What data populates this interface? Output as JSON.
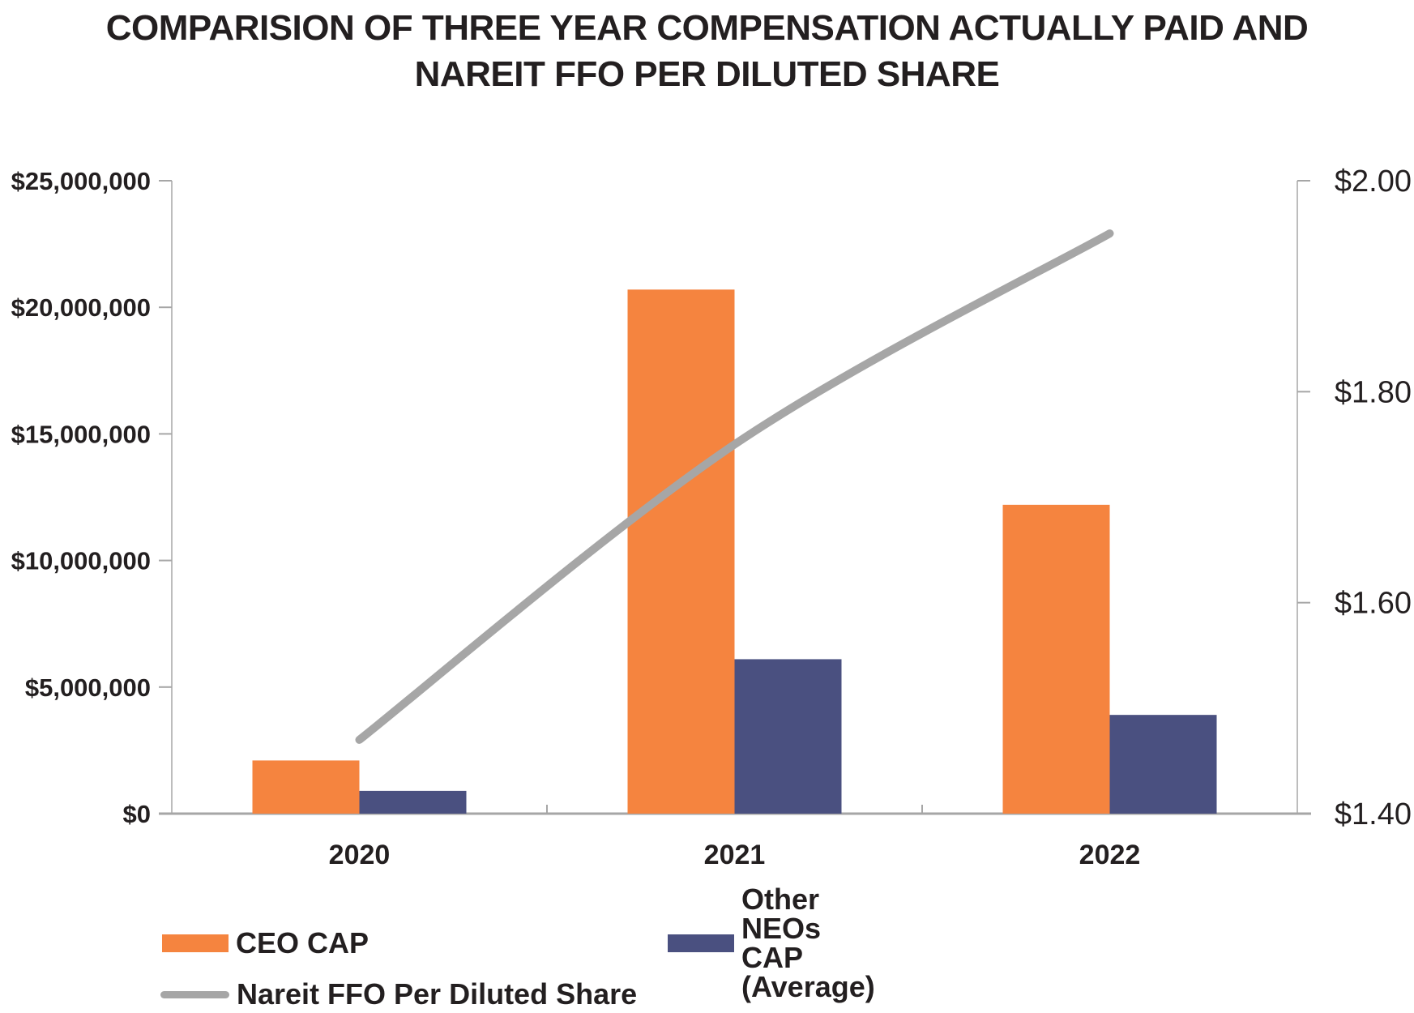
{
  "title": {
    "line1": "COMPARISION OF THREE YEAR COMPENSATION ACTUALLY PAID AND",
    "line2": "NAREIT FFO PER DILUTED SHARE"
  },
  "chart_data": {
    "type": "combo-bar-line",
    "title": "COMPARISION OF THREE YEAR COMPENSATION ACTUALLY PAID AND NAREIT FFO PER DILUTED SHARE",
    "categories": [
      "2020",
      "2021",
      "2022"
    ],
    "series": [
      {
        "name": "CEO CAP",
        "type": "bar",
        "axis": "left",
        "color": "#F5843F",
        "values": [
          2100000,
          20700000,
          12200000
        ]
      },
      {
        "name": "Other NEOs CAP (Average)",
        "type": "bar",
        "axis": "left",
        "color": "#4A5080",
        "values": [
          900000,
          6100000,
          3900000
        ]
      },
      {
        "name": "Nareit FFO Per Diluted Share",
        "type": "line",
        "axis": "right",
        "color": "#A6A6A6",
        "values": [
          1.47,
          1.75,
          1.95
        ]
      }
    ],
    "left_axis": {
      "min": 0,
      "max": 25000000,
      "ticks": [
        0,
        5000000,
        10000000,
        15000000,
        20000000,
        25000000
      ],
      "tick_labels": [
        "$0",
        "$5,000,000",
        "$10,000,000",
        "$15,000,000",
        "$20,000,000",
        "$25,000,000"
      ]
    },
    "right_axis": {
      "min": 1.4,
      "max": 2.0,
      "ticks": [
        1.4,
        1.6,
        1.8,
        2.0
      ],
      "tick_labels": [
        "$1.40",
        "$1.60",
        "$1.80",
        "$2.00"
      ]
    },
    "gridlines": false,
    "legend_position": "bottom-left"
  },
  "colors": {
    "text": "#231F20",
    "axis_line": "#BDBDBD",
    "baseline": "#A6A6A6",
    "tick": "#A6A6A6"
  }
}
